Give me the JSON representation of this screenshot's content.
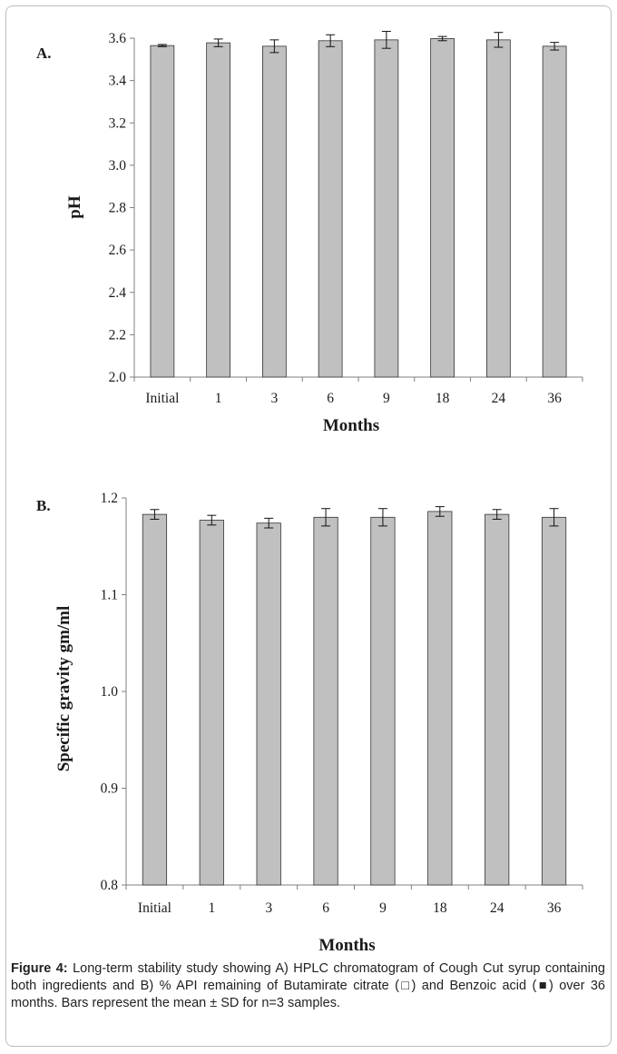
{
  "figure": {
    "caption_label": "Figure 4:",
    "caption_text": " Long-term stability study showing A) HPLC chromatogram of Cough Cut syrup containing both ingredients and B) % API remaining of Butamirate citrate (□) and Benzoic acid (■) over 36 months. Bars represent the mean ± SD for n=3 samples."
  },
  "chart_data": [
    {
      "panel": "A.",
      "type": "bar",
      "categories": [
        "Initial",
        "1",
        "3",
        "6",
        "9",
        "18",
        "24",
        "36"
      ],
      "values": [
        3.565,
        3.578,
        3.562,
        3.588,
        3.592,
        3.598,
        3.592,
        3.562
      ],
      "errors": [
        0.005,
        0.018,
        0.03,
        0.028,
        0.04,
        0.01,
        0.035,
        0.018
      ],
      "xlabel": "Months",
      "ylabel": "pH",
      "ylim": [
        2.0,
        3.6
      ],
      "yticks": [
        "2.0",
        "2.2",
        "2.4",
        "2.6",
        "2.8",
        "3.0",
        "3.2",
        "3.4",
        "3.6"
      ],
      "bar_color": "#c0c0c0",
      "grid": false
    },
    {
      "panel": "B.",
      "type": "bar",
      "categories": [
        "Initial",
        "1",
        "3",
        "6",
        "9",
        "18",
        "24",
        "36"
      ],
      "values": [
        1.183,
        1.177,
        1.174,
        1.18,
        1.18,
        1.186,
        1.183,
        1.18
      ],
      "errors": [
        0.005,
        0.005,
        0.005,
        0.009,
        0.009,
        0.005,
        0.005,
        0.009
      ],
      "xlabel": "Months",
      "ylabel": "Specific gravity gm/ml",
      "ylim": [
        0.8,
        1.2
      ],
      "yticks": [
        "0.8",
        "0.9",
        "1.0",
        "1.1",
        "1.2"
      ],
      "bar_color": "#c0c0c0",
      "grid": false
    }
  ]
}
